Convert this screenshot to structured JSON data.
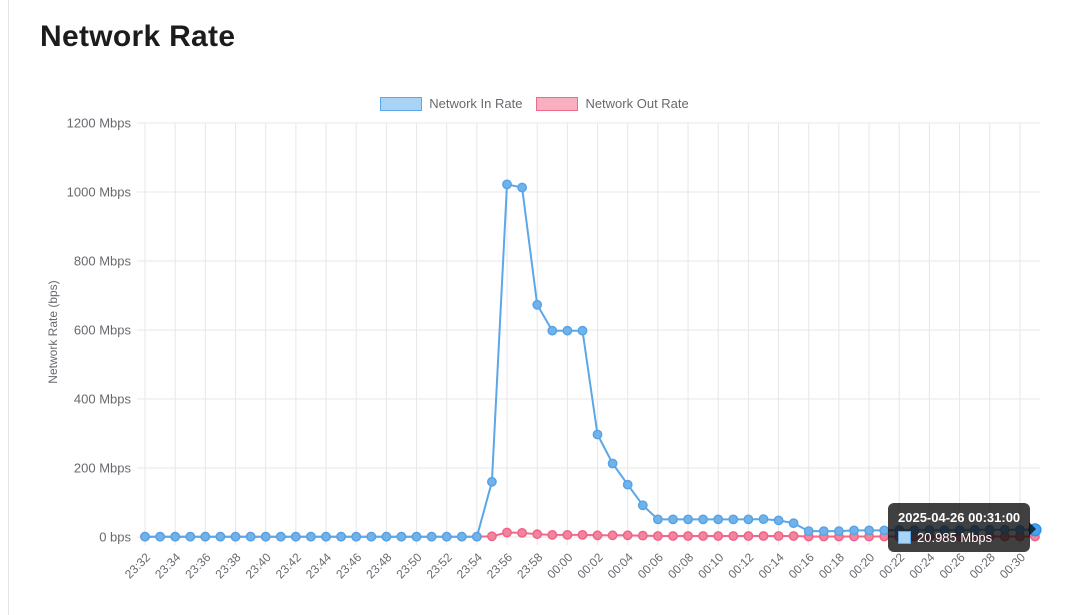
{
  "page": {
    "title": "Network Rate"
  },
  "legend": {
    "items": [
      {
        "label": "Network In Rate",
        "fill": "#a9d4f5",
        "border": "#5ba7e8"
      },
      {
        "label": "Network Out Rate",
        "fill": "#f8afc0",
        "border": "#f1698e"
      }
    ]
  },
  "tooltip": {
    "title": "2025-04-26 00:31:00",
    "value": "20.985 Mbps",
    "swatch_fill": "#a9d4f5",
    "swatch_border": "#5ba7e8"
  },
  "chart_data": {
    "type": "line",
    "title": "Network Rate",
    "xlabel": "",
    "ylabel": "Network Rate (bps)",
    "ylim": [
      0,
      1200
    ],
    "grid": true,
    "legend_position": "top",
    "y_ticks": {
      "values": [
        0,
        200,
        400,
        600,
        800,
        1000,
        1200
      ],
      "labels": [
        "0 bps",
        "200 Mbps",
        "400 Mbps",
        "600 Mbps",
        "800 Mbps",
        "1000 Mbps",
        "1200 Mbps"
      ]
    },
    "x": [
      "23:32",
      "23:33",
      "23:34",
      "23:35",
      "23:36",
      "23:37",
      "23:38",
      "23:39",
      "23:40",
      "23:41",
      "23:42",
      "23:43",
      "23:44",
      "23:45",
      "23:46",
      "23:47",
      "23:48",
      "23:49",
      "23:50",
      "23:51",
      "23:52",
      "23:53",
      "23:54",
      "23:55",
      "23:56",
      "23:57",
      "23:58",
      "23:59",
      "00:00",
      "00:01",
      "00:02",
      "00:03",
      "00:04",
      "00:05",
      "00:06",
      "00:07",
      "00:08",
      "00:09",
      "00:10",
      "00:11",
      "00:12",
      "00:13",
      "00:14",
      "00:15",
      "00:16",
      "00:17",
      "00:18",
      "00:19",
      "00:20",
      "00:21",
      "00:22",
      "00:23",
      "00:24",
      "00:25",
      "00:26",
      "00:27",
      "00:28",
      "00:29",
      "00:30",
      "00:31"
    ],
    "x_tick_labels": [
      "23:32",
      "23:34",
      "23:36",
      "23:38",
      "23:40",
      "23:42",
      "23:44",
      "23:46",
      "23:48",
      "23:50",
      "23:52",
      "23:54",
      "23:56",
      "23:58",
      "00:00",
      "00:02",
      "00:04",
      "00:06",
      "00:08",
      "00:10",
      "00:12",
      "00:14",
      "00:16",
      "00:18",
      "00:20",
      "00:22",
      "00:24",
      "00:26",
      "00:28",
      "00:30"
    ],
    "x_tick_every": 2,
    "unit": "Mbps",
    "series": [
      {
        "name": "Network In Rate",
        "color": "#5ba7e8",
        "point_fill": "#70b2ea",
        "point_border": "#55a3e6",
        "values": [
          1,
          1,
          1,
          1,
          1,
          1,
          1,
          1,
          1,
          1,
          1,
          1,
          1,
          1,
          1,
          1,
          1,
          1,
          1,
          1,
          1,
          1,
          1,
          160,
          1022,
          1013,
          673,
          598,
          598,
          598,
          297,
          213,
          152,
          92,
          51,
          51,
          51,
          51,
          51,
          51,
          51,
          52,
          48,
          40,
          17,
          17,
          17,
          19,
          19,
          19,
          20,
          20,
          20,
          20,
          20,
          21,
          21,
          21,
          21,
          20.985
        ]
      },
      {
        "name": "Network Out Rate",
        "color": "#f1698e",
        "point_fill": "#f3849c",
        "point_border": "#ef6287",
        "values": [
          1,
          1,
          1,
          1,
          1,
          1,
          1,
          1,
          1,
          1,
          1,
          1,
          1,
          1,
          1,
          1,
          1,
          1,
          1,
          1,
          1,
          1,
          1,
          2,
          13,
          12,
          8,
          6,
          6,
          6,
          5,
          5,
          5,
          4,
          3,
          3,
          3,
          3,
          3,
          3,
          3,
          3,
          3,
          3,
          1.5,
          1.5,
          1.5,
          1.5,
          1.5,
          1.5,
          1.5,
          1.5,
          1.5,
          1.5,
          1.5,
          1.5,
          1.5,
          1.5,
          1.5,
          1.5
        ]
      }
    ],
    "hovered_point": {
      "series": "Network In Rate",
      "x": "00:31",
      "value_mbps": 20.985,
      "dot_fill": "#45a2f1",
      "dot_border": "#2e94ec"
    }
  }
}
